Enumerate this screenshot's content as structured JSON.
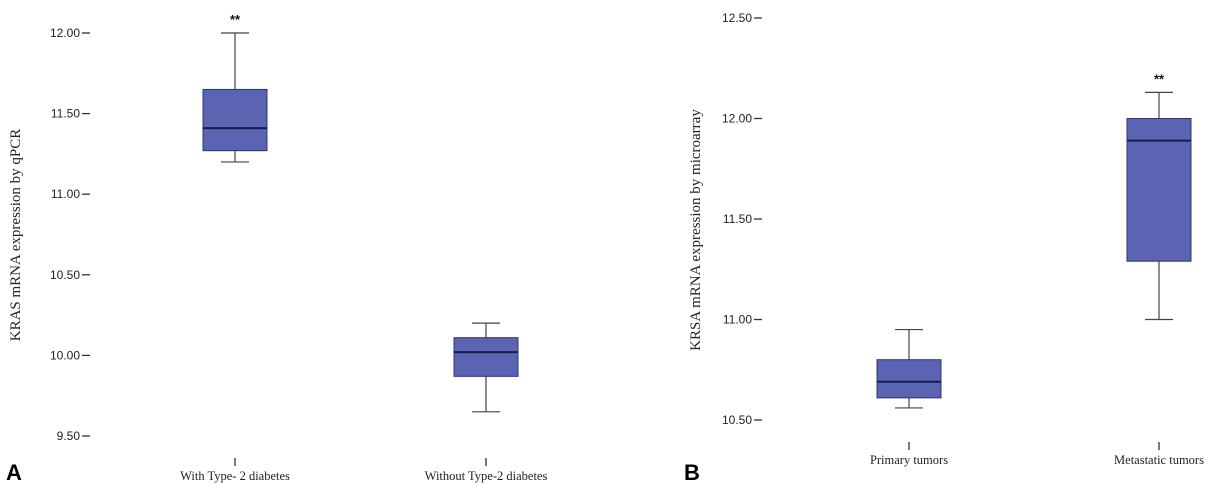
{
  "chart_data": [
    {
      "type": "boxplot",
      "panel_label": "A",
      "ylabel": "KRAS mRNA expression by qPCR",
      "ylim": [
        9.5,
        12.0
      ],
      "yticks": [
        "9.50",
        "10.00",
        "10.50",
        "11.00",
        "11.50",
        "12.00"
      ],
      "categories": [
        "With Type- 2 diabetes",
        "Without Type-2 diabetes"
      ],
      "boxes": [
        {
          "min": 11.2,
          "q1": 11.27,
          "median": 11.41,
          "q3": 11.65,
          "max": 12.0,
          "annotation": "**"
        },
        {
          "min": 9.65,
          "q1": 9.87,
          "median": 10.02,
          "q3": 10.11,
          "max": 10.2,
          "annotation": ""
        }
      ],
      "box_color": "#5b63b3"
    },
    {
      "type": "boxplot",
      "panel_label": "B",
      "ylabel": "KRSA mRNA expression by microarray",
      "ylim": [
        10.5,
        12.5
      ],
      "yticks": [
        "10.50",
        "11.00",
        "11.50",
        "12.00",
        "12.50"
      ],
      "categories": [
        "Primary tumors",
        "Metastatic tumors"
      ],
      "boxes": [
        {
          "min": 10.56,
          "q1": 10.61,
          "median": 10.69,
          "q3": 10.8,
          "max": 10.95,
          "annotation": ""
        },
        {
          "min": 11.0,
          "q1": 11.29,
          "median": 11.89,
          "q3": 12.0,
          "max": 12.13,
          "annotation": "**"
        }
      ],
      "box_color": "#5b63b3"
    }
  ]
}
